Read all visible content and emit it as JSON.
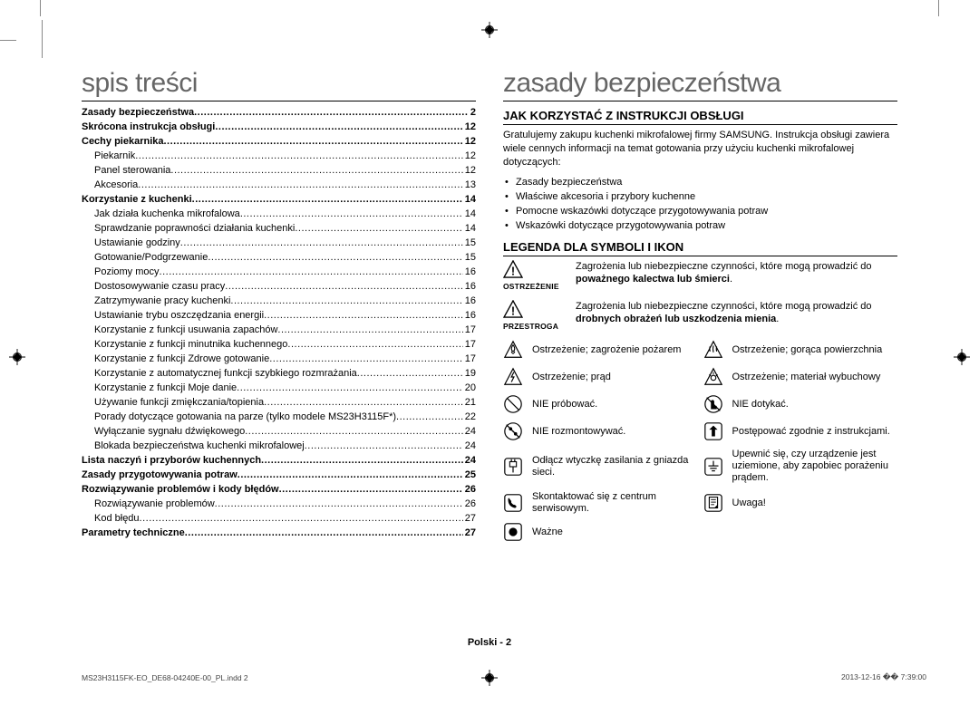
{
  "colors": {
    "title_color": "#666666",
    "text_color": "#000000"
  },
  "left_column_title": "spis treści",
  "right_column_title": "zasady bezpieczeństwa",
  "toc": [
    {
      "label": "Zasady bezpieczeństwa",
      "page": "2",
      "bold": true,
      "sub": false
    },
    {
      "label": "Skrócona instrukcja obsługi",
      "page": "12",
      "bold": true,
      "sub": false
    },
    {
      "label": "Cechy piekarnika",
      "page": "12",
      "bold": true,
      "sub": false
    },
    {
      "label": "Piekarnik",
      "page": "12",
      "bold": false,
      "sub": true
    },
    {
      "label": "Panel sterowania",
      "page": "12",
      "bold": false,
      "sub": true
    },
    {
      "label": "Akcesoria",
      "page": "13",
      "bold": false,
      "sub": true
    },
    {
      "label": "Korzystanie z kuchenki",
      "page": "14",
      "bold": true,
      "sub": false
    },
    {
      "label": "Jak działa kuchenka mikrofalowa",
      "page": "14",
      "bold": false,
      "sub": true
    },
    {
      "label": "Sprawdzanie poprawności działania kuchenki",
      "page": "14",
      "bold": false,
      "sub": true
    },
    {
      "label": "Ustawianie godziny",
      "page": "15",
      "bold": false,
      "sub": true
    },
    {
      "label": "Gotowanie/Podgrzewanie",
      "page": "15",
      "bold": false,
      "sub": true
    },
    {
      "label": "Poziomy mocy",
      "page": "16",
      "bold": false,
      "sub": true
    },
    {
      "label": "Dostosowywanie czasu pracy",
      "page": "16",
      "bold": false,
      "sub": true
    },
    {
      "label": "Zatrzymywanie pracy kuchenki",
      "page": "16",
      "bold": false,
      "sub": true
    },
    {
      "label": "Ustawianie trybu oszczędzania energii",
      "page": "16",
      "bold": false,
      "sub": true
    },
    {
      "label": "Korzystanie z funkcji usuwania zapachów",
      "page": "17",
      "bold": false,
      "sub": true
    },
    {
      "label": "Korzystanie z funkcji minutnika kuchennego",
      "page": "17",
      "bold": false,
      "sub": true
    },
    {
      "label": "Korzystanie z funkcji Zdrowe gotowanie",
      "page": "17",
      "bold": false,
      "sub": true
    },
    {
      "label": "Korzystanie z automatycznej funkcji szybkiego rozmrażania",
      "page": "19",
      "bold": false,
      "sub": true
    },
    {
      "label": "Korzystanie z funkcji Moje danie",
      "page": "20",
      "bold": false,
      "sub": true
    },
    {
      "label": "Używanie funkcji zmiękczania/topienia",
      "page": "21",
      "bold": false,
      "sub": true
    },
    {
      "label": "Porady dotyczące gotowania na parze (tylko modele MS23H3115F*)",
      "page": "22",
      "bold": false,
      "sub": true
    },
    {
      "label": "Wyłączanie sygnału dźwiękowego",
      "page": "24",
      "bold": false,
      "sub": true
    },
    {
      "label": "Blokada bezpieczeństwa kuchenki mikrofalowej",
      "page": "24",
      "bold": false,
      "sub": true
    },
    {
      "label": "Lista naczyń i przyborów kuchennych",
      "page": "24",
      "bold": true,
      "sub": false
    },
    {
      "label": "Zasady przygotowywania potraw",
      "page": "25",
      "bold": true,
      "sub": false
    },
    {
      "label": "Rozwiązywanie problemów i kody błędów",
      "page": "26",
      "bold": true,
      "sub": false
    },
    {
      "label": "Rozwiązywanie problemów",
      "page": "26",
      "bold": false,
      "sub": true
    },
    {
      "label": "Kod błędu",
      "page": "27",
      "bold": false,
      "sub": true
    },
    {
      "label": "Parametry techniczne",
      "page": "27",
      "bold": true,
      "sub": false
    }
  ],
  "right": {
    "section1_title": "JAK KORZYSTAĆ Z INSTRUKCJI OBSŁUGI",
    "intro": "Gratulujemy zakupu kuchenki mikrofalowej firmy SAMSUNG. Instrukcja obsługi zawiera wiele cennych informacji na temat gotowania przy użyciu kuchenki mikrofalowej dotyczących:",
    "bullets": [
      "Zasady bezpieczeństwa",
      "Właściwe akcesoria i przybory kuchenne",
      "Pomocne wskazówki dotyczące przygotowywania potraw",
      "Wskazówki dotyczące przygotowywania potraw"
    ],
    "section2_title": "LEGENDA DLA SYMBOLI I IKON",
    "warn1_label": "OSTRZEŻENIE",
    "warn1_text_a": "Zagrożenia lub niebezpieczne czynności, które mogą prowadzić do ",
    "warn1_text_b": "poważnego kalectwa lub śmierci",
    "warn2_label": "PRZESTROGA",
    "warn2_text_a": "Zagrożenia lub niebezpieczne czynności, które mogą prowadzić do ",
    "warn2_text_b": "drobnych obrażeń lub uszkodzenia mienia",
    "icons": [
      {
        "l": "fire",
        "lt": "Ostrzeżenie; zagrożenie pożarem",
        "r": "hot",
        "rt": "Ostrzeżenie; gorąca powierzchnia"
      },
      {
        "l": "elec",
        "lt": "Ostrzeżenie; prąd",
        "r": "expl",
        "rt": "Ostrzeżenie; materiał wybuchowy"
      },
      {
        "l": "notry",
        "lt": "NIE próbować.",
        "r": "notouch",
        "rt": "NIE dotykać."
      },
      {
        "l": "nodis",
        "lt": "NIE rozmontowywać.",
        "r": "follow",
        "rt": "Postępować zgodnie z instrukcjami."
      },
      {
        "l": "unplug",
        "lt": "Odłącz wtyczkę zasilania z gniazda sieci.",
        "r": "ground",
        "rt": "Upewnić się, czy urządzenie jest uziemione, aby zapobiec porażeniu prądem."
      },
      {
        "l": "call",
        "lt": "Skontaktować się z centrum serwisowym.",
        "r": "note",
        "rt": "Uwaga!"
      },
      {
        "l": "imp",
        "lt": "Ważne",
        "r": "",
        "rt": ""
      }
    ]
  },
  "footer": {
    "center": "Polski - 2",
    "left": "MS23H3115FK-EO_DE68-04240E-00_PL.indd   2",
    "right_date": "2013-12-16   �� 7:39:00"
  }
}
